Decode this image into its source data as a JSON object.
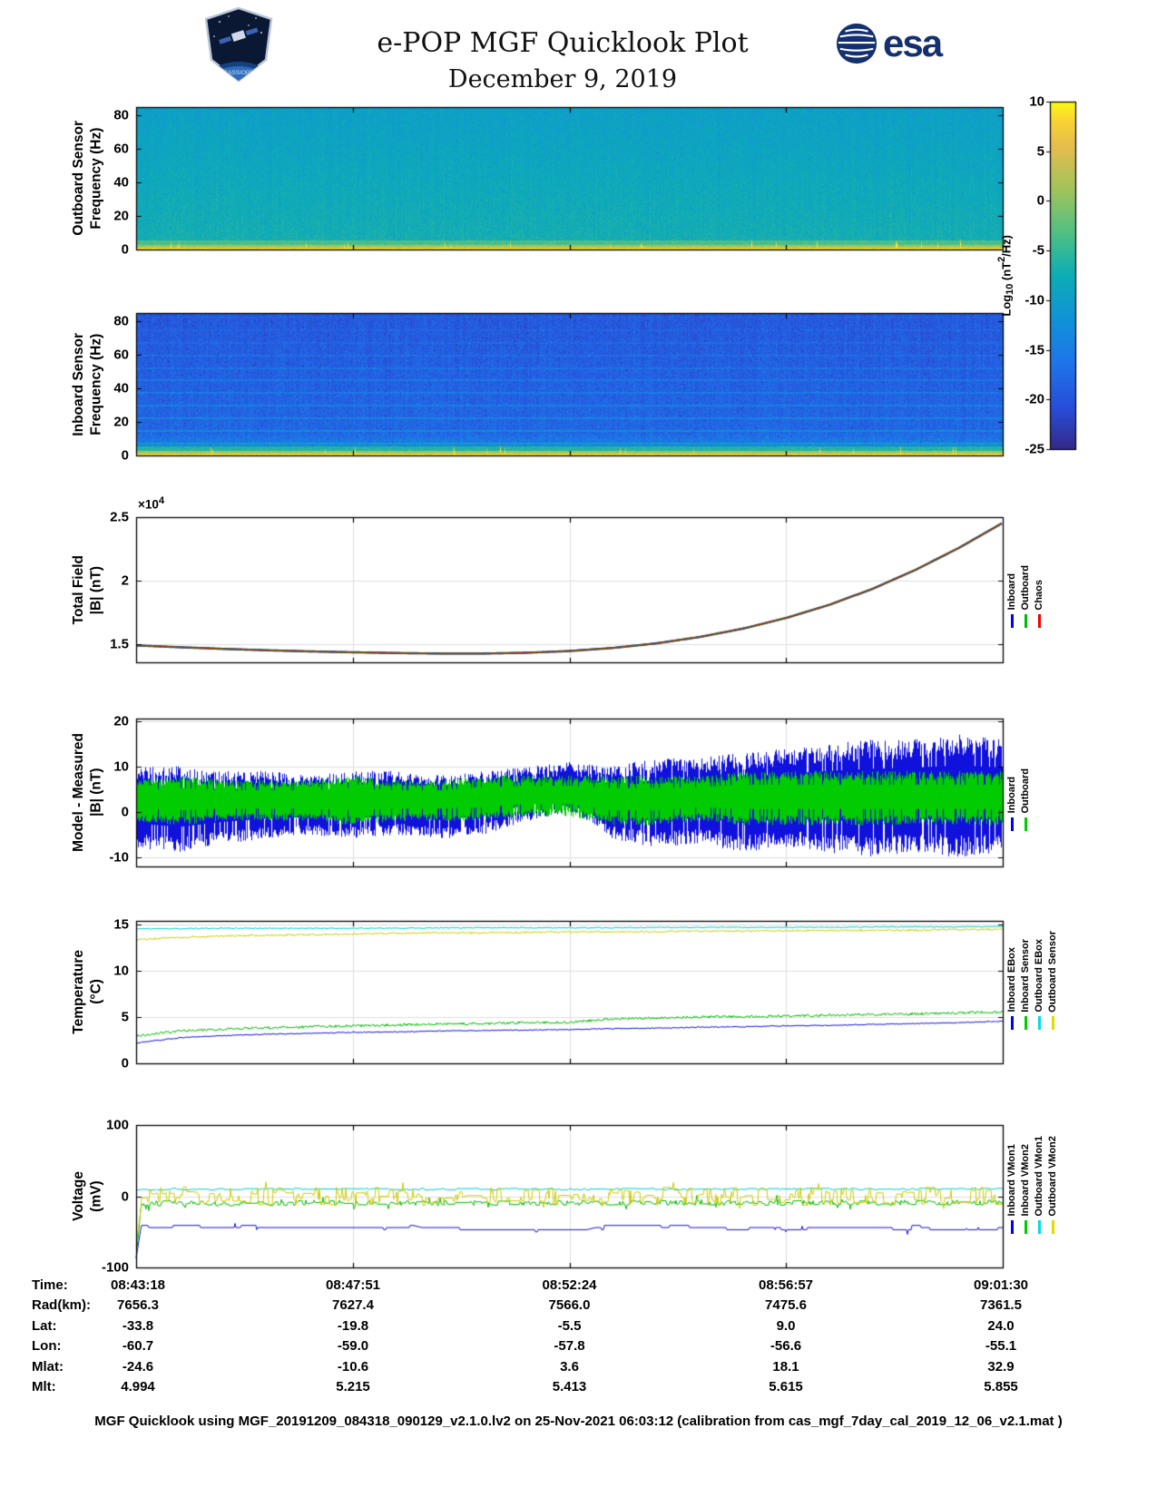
{
  "header": {
    "title": "e-POP MGF Quicklook Plot",
    "date": "December 9, 2019"
  },
  "logos": {
    "esa_text": "esa",
    "cassiope_text": "CASSIOPE"
  },
  "colorbar": {
    "label_prefix": "Log",
    "label_sub": "10",
    "label_mid": " (nT",
    "label_sup": "2",
    "label_suffix": "/Hz)",
    "ticks": [
      "10",
      "5",
      "0",
      "-5",
      "-10",
      "-15",
      "-20",
      "-25"
    ],
    "tick_values": [
      10,
      5,
      0,
      -5,
      -10,
      -15,
      -20,
      -25
    ],
    "vmin": -25,
    "vmax": 10
  },
  "chart_data": [
    {
      "type": "heatmap",
      "ylabel": "Outboard Sensor\nFrequency (Hz)",
      "ylim": [
        0,
        85
      ],
      "yticks": [
        {
          "v": 0,
          "label": "0"
        },
        {
          "v": 20,
          "label": "20"
        },
        {
          "v": 40,
          "label": "40"
        },
        {
          "v": 60,
          "label": "60"
        },
        {
          "v": 80,
          "label": "80"
        }
      ],
      "zlabel": "Log10 (nT^2/Hz)",
      "zlim": [
        -25,
        10
      ],
      "description": "Broadband cyan-blue noise around -8 log power, intense yellow band below ~2 Hz with sporadic spikes",
      "render": {
        "seed": 7,
        "base": -7.0,
        "slope": 2.6,
        "noise": 3.4,
        "col_noise": 1.2,
        "mid_band": -3.5,
        "low_boost": 0,
        "lines": false
      }
    },
    {
      "type": "heatmap",
      "ylabel": "Inboard Sensor\nFrequency (Hz)",
      "ylim": [
        0,
        85
      ],
      "yticks": [
        {
          "v": 0,
          "label": "0"
        },
        {
          "v": 20,
          "label": "20"
        },
        {
          "v": 40,
          "label": "40"
        },
        {
          "v": 60,
          "label": "60"
        },
        {
          "v": 80,
          "label": "80"
        }
      ],
      "zlabel": "Log10 (nT^2/Hz)",
      "zlim": [
        -25,
        10
      ],
      "description": "Darker blue background around -17 log power, brighter cyan below ~14 Hz, faint harmonic lines every ~7.5 Hz, yellow band below ~2 Hz",
      "render": {
        "seed": 8,
        "base": -17.5,
        "slope": 2.0,
        "noise": 4.6,
        "col_noise": 1.6,
        "mid_band": -6,
        "low_boost": 6,
        "lines": true
      }
    },
    {
      "type": "line",
      "ylabel": "Total Field\n|B| (nT)",
      "ylim": [
        13570,
        25000
      ],
      "yticks": [
        {
          "v": 15000,
          "label": "1.5"
        },
        {
          "v": 20000,
          "label": "2"
        },
        {
          "v": 25000,
          "label": "2.5"
        }
      ],
      "offset_prefix": "×10",
      "offset_exp": "4",
      "xgrid": [
        0.25,
        0.5,
        0.75
      ],
      "legend": [
        {
          "label": "Inboard",
          "color": "#0000ee"
        },
        {
          "label": "Outboard",
          "color": "#00bb00"
        },
        {
          "label": "Chaos",
          "color": "#ee0000"
        }
      ],
      "series": [
        {
          "name": "Inboard",
          "color": "#2222cc",
          "style": "smooth",
          "lw": 2.4,
          "y": [
            14900,
            14760,
            14630,
            14520,
            14430,
            14360,
            14300,
            14260,
            14260,
            14320,
            14460,
            14700,
            15060,
            15560,
            16220,
            17060,
            18100,
            19360,
            20870,
            22600,
            24550
          ]
        },
        {
          "name": "Outboard",
          "color": "#009900",
          "style": "smooth",
          "lw": 1.7,
          "y": [
            14900,
            14760,
            14630,
            14520,
            14430,
            14360,
            14300,
            14260,
            14260,
            14320,
            14460,
            14700,
            15060,
            15560,
            16220,
            17060,
            18100,
            19360,
            20870,
            22600,
            24550
          ]
        },
        {
          "name": "Chaos",
          "color": "#b52a00",
          "style": "smooth",
          "lw": 1.1,
          "y": [
            14900,
            14760,
            14630,
            14520,
            14430,
            14360,
            14300,
            14260,
            14260,
            14320,
            14460,
            14700,
            15060,
            15560,
            16220,
            17060,
            18100,
            19360,
            20870,
            22600,
            24550
          ]
        }
      ]
    },
    {
      "type": "band",
      "ylabel": "Model - Measured\n|B| (nT)",
      "ylim": [
        -12,
        20.5
      ],
      "yticks": [
        {
          "v": -10,
          "label": "-10"
        },
        {
          "v": 0,
          "label": "0"
        },
        {
          "v": 10,
          "label": "10"
        },
        {
          "v": 20,
          "label": "20"
        }
      ],
      "xgrid": [
        0.25,
        0.5,
        0.75
      ],
      "legend": [
        {
          "label": "Inboard",
          "color": "#0000ee"
        },
        {
          "label": "Outboard",
          "color": "#00cc00"
        }
      ],
      "series": [
        {
          "name": "Inboard",
          "color": "#1111dd",
          "style": "band",
          "seed": 11,
          "upper": [
            10,
            10,
            9,
            9,
            8,
            9,
            9,
            8,
            9,
            10,
            11,
            10,
            12,
            12,
            13,
            14,
            15,
            16,
            16,
            17,
            16
          ],
          "lower": [
            -8,
            -9,
            -7,
            -6,
            -5,
            -6,
            -5,
            -6,
            -5,
            -2,
            0,
            -6,
            -8,
            -7,
            -9,
            -8,
            -9,
            -10,
            -9,
            -10,
            -9
          ]
        },
        {
          "name": "Outboard",
          "color": "#00cc00",
          "style": "band",
          "seed": 22,
          "upper": [
            7,
            8,
            7,
            7,
            7,
            8,
            7,
            7,
            8,
            8,
            8,
            8,
            8,
            8,
            9,
            9,
            9,
            9,
            9,
            9,
            9
          ],
          "lower": [
            -2,
            -3,
            -2,
            -2,
            -2,
            -3,
            -2,
            -2,
            -2,
            -1,
            -1,
            -3,
            -3,
            -2,
            -3,
            -3,
            -3,
            -3,
            -3,
            -3,
            -3
          ]
        }
      ]
    },
    {
      "type": "lines",
      "ylabel": "Temperature\n(°C)",
      "ylim": [
        0,
        15.4
      ],
      "yticks": [
        {
          "v": 0,
          "label": "0"
        },
        {
          "v": 5,
          "label": "5"
        },
        {
          "v": 10,
          "label": "10"
        },
        {
          "v": 15,
          "label": "15"
        }
      ],
      "xgrid": [
        0.25,
        0.5,
        0.75
      ],
      "legend": [
        {
          "label": "Inboard EBox",
          "color": "#0000ee"
        },
        {
          "label": "Inboard Sensor",
          "color": "#00cc00"
        },
        {
          "label": "Outboard EBox",
          "color": "#00dddd"
        },
        {
          "label": "Outboard Sensor",
          "color": "#dddd00"
        }
      ],
      "series": [
        {
          "name": "Inboard EBox",
          "color": "#1111dd",
          "style": "noisy",
          "seed": 31,
          "noise": 0.06,
          "y": [
            2.2,
            2.75,
            3.0,
            3.15,
            3.25,
            3.35,
            3.4,
            3.5,
            3.55,
            3.6,
            3.65,
            3.75,
            3.8,
            3.9,
            3.95,
            4.05,
            4.1,
            4.2,
            4.3,
            4.4,
            4.55
          ]
        },
        {
          "name": "Inboard Sensor",
          "color": "#00bb00",
          "style": "noisy",
          "seed": 32,
          "noise": 0.14,
          "y": [
            2.95,
            3.5,
            3.7,
            3.85,
            3.95,
            4.05,
            4.15,
            4.25,
            4.3,
            4.4,
            4.45,
            4.8,
            4.9,
            5.0,
            5.05,
            5.1,
            5.2,
            5.3,
            5.35,
            5.45,
            5.55
          ]
        },
        {
          "name": "Outboard EBox",
          "color": "#00cccc",
          "style": "noisy",
          "seed": 33,
          "noise": 0.06,
          "y": [
            14.55,
            14.55,
            14.6,
            14.6,
            14.6,
            14.6,
            14.6,
            14.65,
            14.65,
            14.65,
            14.65,
            14.65,
            14.7,
            14.7,
            14.7,
            14.7,
            14.7,
            14.75,
            14.75,
            14.75,
            14.8
          ]
        },
        {
          "name": "Outboard Sensor",
          "color": "#cccc00",
          "style": "noisy",
          "seed": 34,
          "noise": 0.1,
          "y": [
            13.4,
            13.6,
            13.75,
            13.85,
            13.9,
            14.0,
            14.05,
            14.1,
            14.1,
            14.15,
            14.2,
            14.2,
            14.25,
            14.3,
            14.3,
            14.35,
            14.35,
            14.4,
            14.4,
            14.45,
            14.5
          ]
        }
      ]
    },
    {
      "type": "lines",
      "ylabel": "Voltage\n(mV)",
      "ylim": [
        -100,
        100
      ],
      "yticks": [
        {
          "v": -100,
          "label": "-100"
        },
        {
          "v": 0,
          "label": "0"
        },
        {
          "v": 100,
          "label": "100"
        }
      ],
      "xgrid": [
        0.25,
        0.5,
        0.75
      ],
      "legend": [
        {
          "label": "Inboard VMon1",
          "color": "#0000ee"
        },
        {
          "label": "Inboard VMon2",
          "color": "#00cc00"
        },
        {
          "label": "Outboard VMon1",
          "color": "#00dddd"
        },
        {
          "label": "Outboard VMon2",
          "color": "#dddd00"
        }
      ],
      "series": [
        {
          "name": "Inboard VMon1",
          "color": "#1111dd",
          "style": "noisy",
          "seed": 41,
          "noise": 2.5,
          "hold": 0.05,
          "quant": 3,
          "spike": {
            "prob": 0.012,
            "amp": 7
          },
          "x": [
            0,
            0.006,
            0.32,
            0.33,
            0.52,
            0.53,
            1
          ],
          "y": [
            -90,
            -44,
            -44,
            -47,
            -47,
            -44,
            -44
          ]
        },
        {
          "name": "Inboard VMon2",
          "color": "#00bb00",
          "style": "noisy",
          "seed": 42,
          "noise": 3.5,
          "hold": 0.4,
          "spike": {
            "prob": 0.04,
            "amp": 9
          },
          "x": [
            0,
            0.006,
            1
          ],
          "y": [
            -88,
            -10,
            -9
          ]
        },
        {
          "name": "Outboard VMon1",
          "color": "#00cccc",
          "style": "noisy",
          "seed": 43,
          "noise": 1.2,
          "hold": 0.3,
          "y": [
            10,
            10
          ]
        },
        {
          "name": "Outboard VMon2",
          "color": "#cccc00",
          "style": "noisy",
          "seed": 44,
          "noise": 13,
          "hold": 0.3,
          "spike": {
            "prob": 0.03,
            "amp": 13
          },
          "x": [
            0,
            0.006,
            1
          ],
          "y": [
            -60,
            0,
            0
          ]
        }
      ]
    }
  ],
  "table": {
    "rows": [
      {
        "label": "Time:",
        "values": [
          "08:43:18",
          "08:47:51",
          "08:52:24",
          "08:56:57",
          "09:01:30"
        ]
      },
      {
        "label": "Rad(km):",
        "values": [
          "7656.3",
          "7627.4",
          "7566.0",
          "7475.6",
          "7361.5"
        ]
      },
      {
        "label": "Lat:",
        "values": [
          "-33.8",
          "-19.8",
          "-5.5",
          "9.0",
          "24.0"
        ]
      },
      {
        "label": "Lon:",
        "values": [
          "-60.7",
          "-59.0",
          "-57.8",
          "-56.6",
          "-55.1"
        ]
      },
      {
        "label": "Mlat:",
        "values": [
          "-24.6",
          "-10.6",
          "3.6",
          "18.1",
          "32.9"
        ]
      },
      {
        "label": "Mlt:",
        "values": [
          "4.994",
          "5.215",
          "5.413",
          "5.615",
          "5.855"
        ]
      }
    ]
  },
  "footer": "MGF Quicklook using MGF_20191209_084318_090129_v2.1.0.lv2 on 25-Nov-2021 06:03:12 (calibration from cas_mgf_7day_cal_2019_12_06_v2.1.mat )"
}
